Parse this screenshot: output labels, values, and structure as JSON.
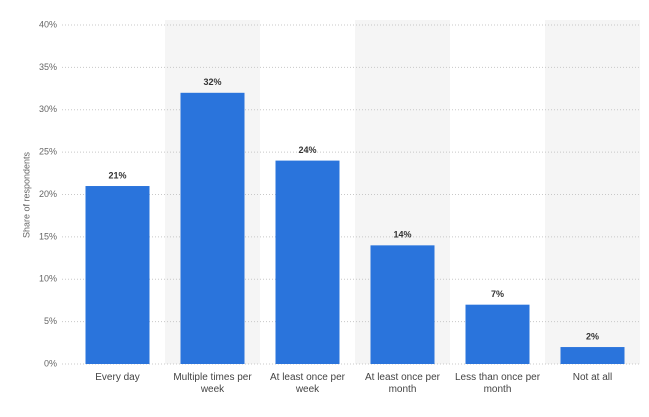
{
  "chart_data": {
    "type": "bar",
    "y_label": "Share of respondents",
    "categories": [
      "Every day",
      "Multiple times per week",
      "At least once per week",
      "At least once per month",
      "Less than once per month",
      "Not at all"
    ],
    "values": [
      21,
      32,
      24,
      14,
      7,
      2
    ],
    "value_labels": [
      "21%",
      "32%",
      "24%",
      "14%",
      "7%",
      "2%"
    ],
    "color": "#2a74dc",
    "ylim": [
      0,
      40
    ],
    "yticks": [
      {
        "value": 0,
        "label": "0%"
      },
      {
        "value": 5,
        "label": "5%"
      },
      {
        "value": 10,
        "label": "10%"
      },
      {
        "value": 15,
        "label": "15%"
      },
      {
        "value": 20,
        "label": "20%"
      },
      {
        "value": 25,
        "label": "25%"
      },
      {
        "value": 30,
        "label": "30%"
      },
      {
        "value": 35,
        "label": "35%"
      },
      {
        "value": 40,
        "label": "40%"
      }
    ],
    "grid": true
  }
}
